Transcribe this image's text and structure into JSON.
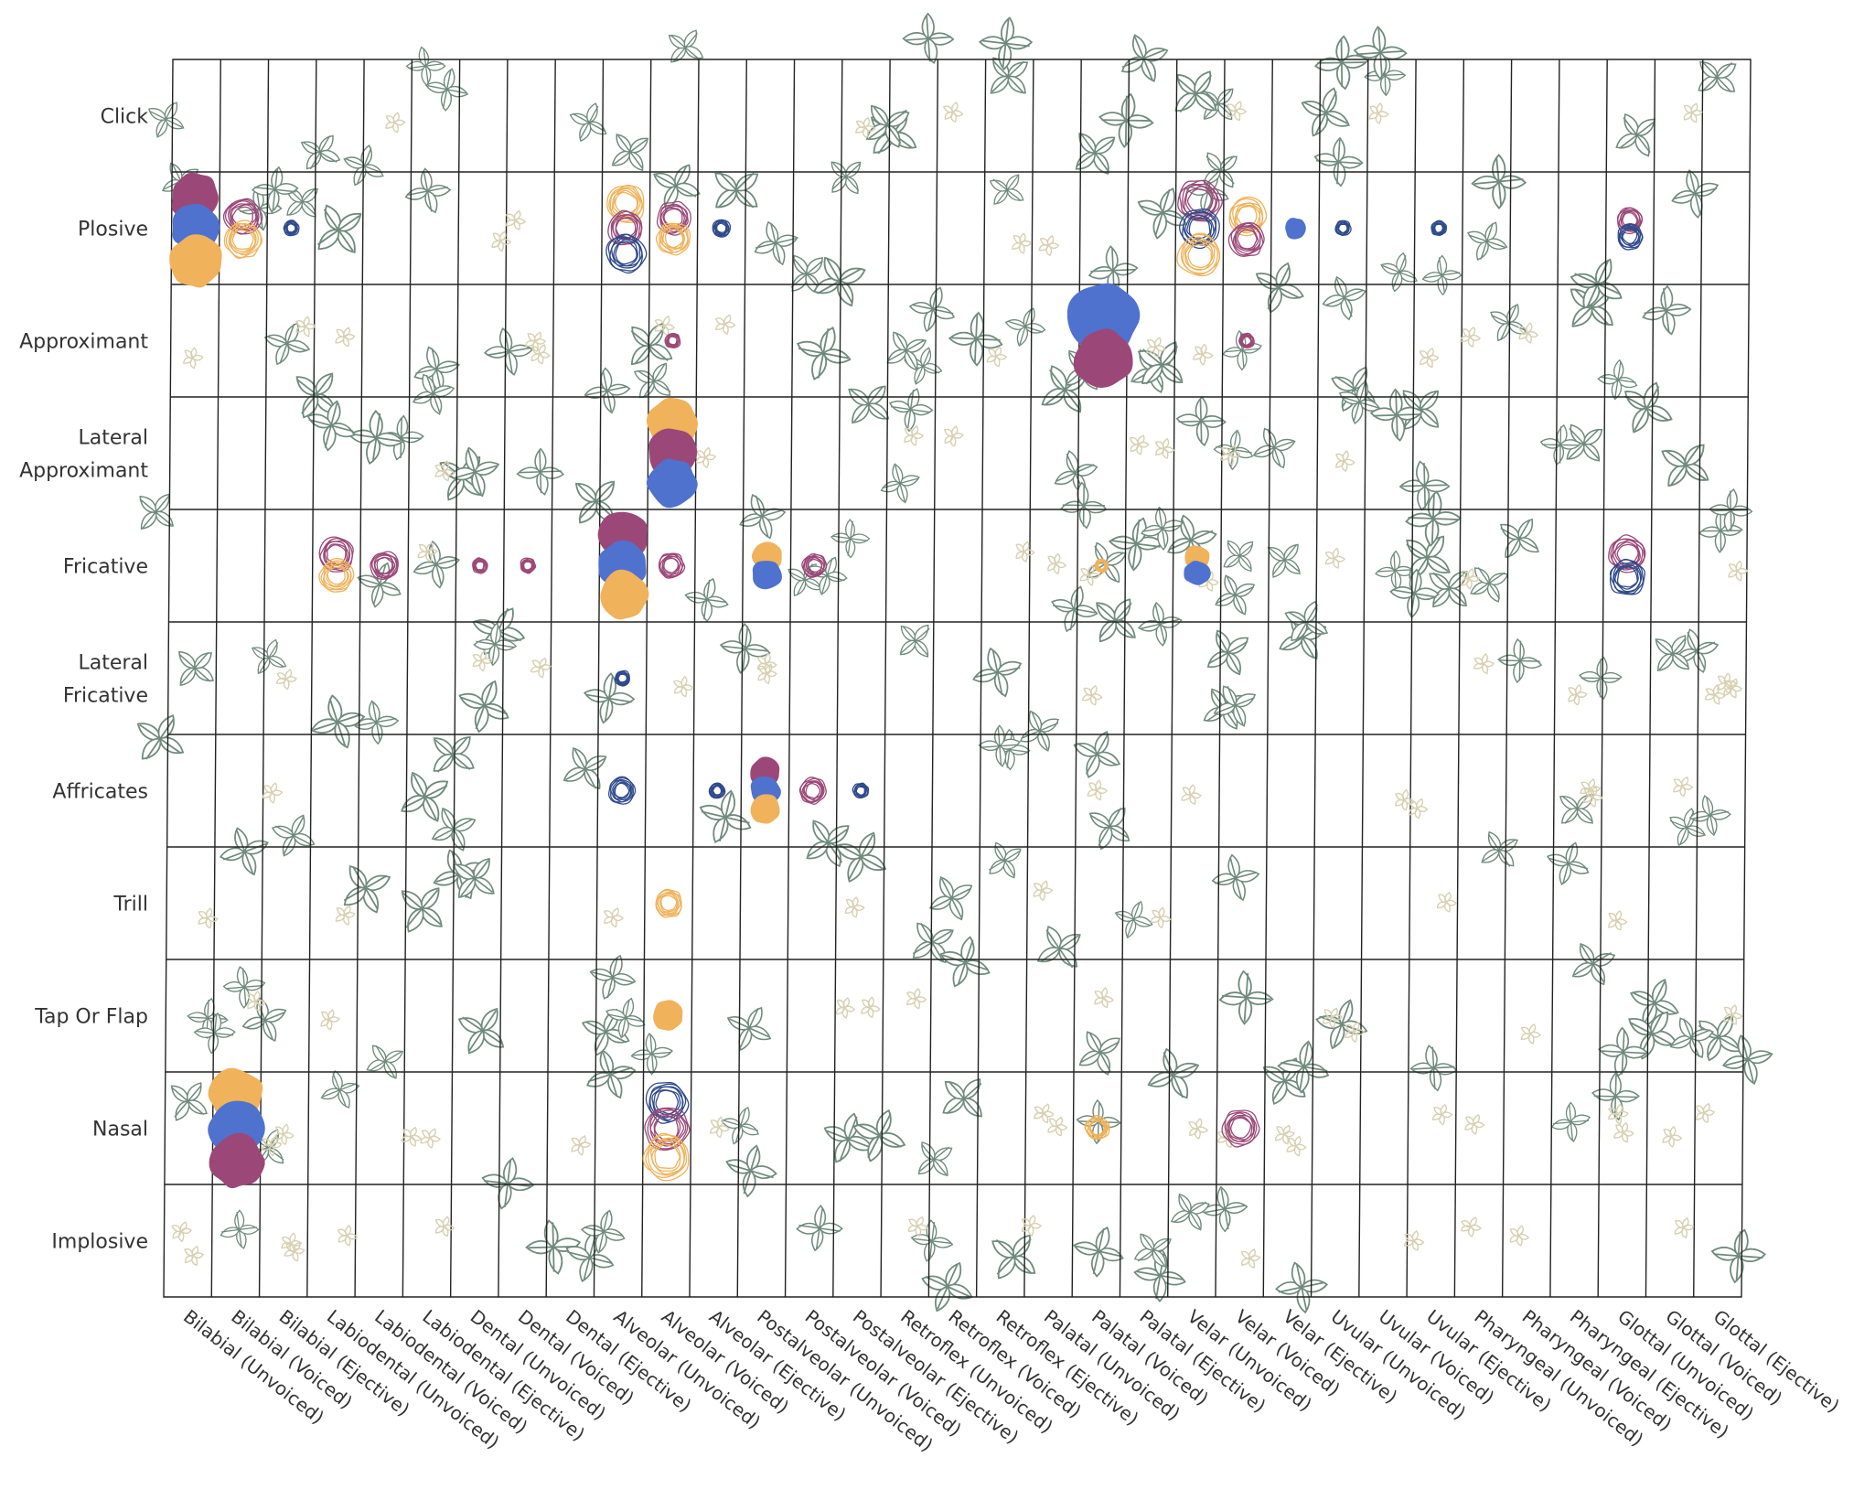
{
  "chart_data": {
    "type": "scatter",
    "title": "",
    "rows": [
      "Click",
      "Plosive",
      "Approximant",
      "Lateral Approximant",
      "Fricative",
      "Lateral Fricative",
      "Affricates",
      "Trill",
      "Tap Or Flap",
      "Nasal",
      "Implosive"
    ],
    "columns": [
      "Bilabial (Unvoiced)",
      "Bilabial (Voiced)",
      "Bilabial (Ejective)",
      "Labiodental (Unvoiced)",
      "Labiodental (Voiced)",
      "Labiodental (Ejective)",
      "Dental (Unvoiced)",
      "Dental (Voiced)",
      "Dental (Ejective)",
      "Alveolar (Unvoiced)",
      "Alveolar (Voiced)",
      "Alveolar (Ejective)",
      "Postalveolar (Unvoiced)",
      "Postalveolar (Voiced)",
      "Postalveolar (Ejective)",
      "Retroflex (Unvoiced)",
      "Retroflex (Voiced)",
      "Retroflex (Ejective)",
      "Palatal (Unvoiced)",
      "Palatal (Voiced)",
      "Palatal (Ejective)",
      "Velar (Unvoiced)",
      "Velar (Voiced)",
      "Velar (Ejective)",
      "Uvular (Unvoiced)",
      "Uvular (Voiced)",
      "Uvular (Ejective)",
      "Pharyngeal (Unvoiced)",
      "Pharyngeal (Voiced)",
      "Pharyngeal (Ejective)",
      "Glottal (Unvoiced)",
      "Glottal (Voiced)",
      "Glottal (Ejective)"
    ],
    "colors": {
      "orange": "#f0b25a",
      "purple": "#9b4878",
      "blue": "#4f72cf",
      "navy": "#2f4a8c",
      "leaf_stroke": "#6f8b7c",
      "faint": "#d8d0b0"
    },
    "blobs": [
      {
        "row": 1,
        "col": 0,
        "color": "purple",
        "style": "solid",
        "size": 1.1
      },
      {
        "row": 1,
        "col": 0,
        "color": "blue",
        "style": "solid",
        "size": 1.1
      },
      {
        "row": 1,
        "col": 0,
        "color": "orange",
        "style": "solid",
        "size": 1.2
      },
      {
        "row": 1,
        "col": 1,
        "color": "purple",
        "style": "scribble",
        "size": 0.85
      },
      {
        "row": 1,
        "col": 1,
        "color": "orange",
        "style": "scribble",
        "size": 0.85
      },
      {
        "row": 1,
        "col": 2,
        "color": "navy",
        "style": "scribble",
        "size": 0.35
      },
      {
        "row": 1,
        "col": 9,
        "color": "orange",
        "style": "scribble",
        "size": 0.9
      },
      {
        "row": 1,
        "col": 9,
        "color": "purple",
        "style": "scribble",
        "size": 0.8
      },
      {
        "row": 1,
        "col": 9,
        "color": "navy",
        "style": "scribble",
        "size": 0.9
      },
      {
        "row": 1,
        "col": 10,
        "color": "purple",
        "style": "scribble",
        "size": 0.75
      },
      {
        "row": 1,
        "col": 10,
        "color": "orange",
        "style": "scribble",
        "size": 0.75
      },
      {
        "row": 1,
        "col": 11,
        "color": "navy",
        "style": "scribble",
        "size": 0.4
      },
      {
        "row": 1,
        "col": 21,
        "color": "purple",
        "style": "scribble",
        "size": 1.0
      },
      {
        "row": 1,
        "col": 21,
        "color": "navy",
        "style": "scribble",
        "size": 0.9
      },
      {
        "row": 1,
        "col": 21,
        "color": "orange",
        "style": "scribble",
        "size": 1.0
      },
      {
        "row": 1,
        "col": 22,
        "color": "orange",
        "style": "scribble",
        "size": 0.85
      },
      {
        "row": 1,
        "col": 22,
        "color": "purple",
        "style": "scribble",
        "size": 0.8
      },
      {
        "row": 1,
        "col": 23,
        "color": "blue",
        "style": "solid",
        "size": 0.45
      },
      {
        "row": 1,
        "col": 24,
        "color": "navy",
        "style": "scribble",
        "size": 0.35
      },
      {
        "row": 1,
        "col": 26,
        "color": "navy",
        "style": "scribble",
        "size": 0.35
      },
      {
        "row": 1,
        "col": 30,
        "color": "purple",
        "style": "scribble",
        "size": 0.6
      },
      {
        "row": 1,
        "col": 30,
        "color": "navy",
        "style": "scribble",
        "size": 0.6
      },
      {
        "row": 2,
        "col": 10,
        "color": "purple",
        "style": "scribble",
        "size": 0.35
      },
      {
        "row": 2,
        "col": 19,
        "color": "blue",
        "style": "solid",
        "size": 1.6
      },
      {
        "row": 2,
        "col": 19,
        "color": "purple",
        "style": "solid",
        "size": 1.3
      },
      {
        "row": 2,
        "col": 22,
        "color": "purple",
        "style": "scribble",
        "size": 0.35
      },
      {
        "row": 3,
        "col": 10,
        "color": "orange",
        "style": "solid",
        "size": 1.1
      },
      {
        "row": 3,
        "col": 10,
        "color": "purple",
        "style": "solid",
        "size": 1.1
      },
      {
        "row": 3,
        "col": 10,
        "color": "blue",
        "style": "solid",
        "size": 1.1
      },
      {
        "row": 4,
        "col": 3,
        "color": "purple",
        "style": "scribble",
        "size": 0.8
      },
      {
        "row": 4,
        "col": 4,
        "color": "purple",
        "style": "scribble",
        "size": 0.65
      },
      {
        "row": 4,
        "col": 3,
        "color": "orange",
        "style": "scribble",
        "size": 0.75
      },
      {
        "row": 4,
        "col": 6,
        "color": "purple",
        "style": "scribble",
        "size": 0.35
      },
      {
        "row": 4,
        "col": 7,
        "color": "purple",
        "style": "scribble",
        "size": 0.35
      },
      {
        "row": 4,
        "col": 9,
        "color": "purple",
        "style": "solid",
        "size": 1.1
      },
      {
        "row": 4,
        "col": 9,
        "color": "blue",
        "style": "solid",
        "size": 1.1
      },
      {
        "row": 4,
        "col": 9,
        "color": "orange",
        "style": "solid",
        "size": 1.1
      },
      {
        "row": 4,
        "col": 10,
        "color": "purple",
        "style": "scribble",
        "size": 0.6
      },
      {
        "row": 4,
        "col": 12,
        "color": "orange",
        "style": "solid",
        "size": 0.65
      },
      {
        "row": 4,
        "col": 12,
        "color": "blue",
        "style": "solid",
        "size": 0.65
      },
      {
        "row": 4,
        "col": 13,
        "color": "purple",
        "style": "scribble",
        "size": 0.55
      },
      {
        "row": 4,
        "col": 19,
        "color": "orange",
        "style": "scribble",
        "size": 0.3
      },
      {
        "row": 4,
        "col": 21,
        "color": "orange",
        "style": "solid",
        "size": 0.55
      },
      {
        "row": 4,
        "col": 21,
        "color": "blue",
        "style": "solid",
        "size": 0.55
      },
      {
        "row": 4,
        "col": 30,
        "color": "purple",
        "style": "scribble",
        "size": 0.85
      },
      {
        "row": 4,
        "col": 30,
        "color": "navy",
        "style": "scribble",
        "size": 0.85
      },
      {
        "row": 5,
        "col": 9,
        "color": "navy",
        "style": "scribble",
        "size": 0.35
      },
      {
        "row": 6,
        "col": 9,
        "color": "navy",
        "style": "scribble",
        "size": 0.6
      },
      {
        "row": 6,
        "col": 11,
        "color": "navy",
        "style": "scribble",
        "size": 0.35
      },
      {
        "row": 6,
        "col": 12,
        "color": "purple",
        "style": "solid",
        "size": 0.65
      },
      {
        "row": 6,
        "col": 12,
        "color": "blue",
        "style": "solid",
        "size": 0.65
      },
      {
        "row": 6,
        "col": 12,
        "color": "orange",
        "style": "solid",
        "size": 0.65
      },
      {
        "row": 6,
        "col": 13,
        "color": "purple",
        "style": "scribble",
        "size": 0.6
      },
      {
        "row": 6,
        "col": 14,
        "color": "navy",
        "style": "scribble",
        "size": 0.35
      },
      {
        "row": 7,
        "col": 10,
        "color": "orange",
        "style": "scribble",
        "size": 0.65
      },
      {
        "row": 8,
        "col": 10,
        "color": "orange",
        "style": "solid",
        "size": 0.65
      },
      {
        "row": 9,
        "col": 1,
        "color": "orange",
        "style": "solid",
        "size": 1.2
      },
      {
        "row": 9,
        "col": 1,
        "color": "blue",
        "style": "solid",
        "size": 1.2
      },
      {
        "row": 9,
        "col": 1,
        "color": "purple",
        "style": "solid",
        "size": 1.2
      },
      {
        "row": 9,
        "col": 10,
        "color": "navy",
        "style": "scribble",
        "size": 0.95
      },
      {
        "row": 9,
        "col": 10,
        "color": "purple",
        "style": "scribble",
        "size": 1.0
      },
      {
        "row": 9,
        "col": 10,
        "color": "orange",
        "style": "scribble",
        "size": 1.05
      },
      {
        "row": 9,
        "col": 19,
        "color": "orange",
        "style": "scribble",
        "size": 0.55
      },
      {
        "row": 9,
        "col": 22,
        "color": "purple",
        "style": "scribble",
        "size": 0.85
      }
    ]
  }
}
